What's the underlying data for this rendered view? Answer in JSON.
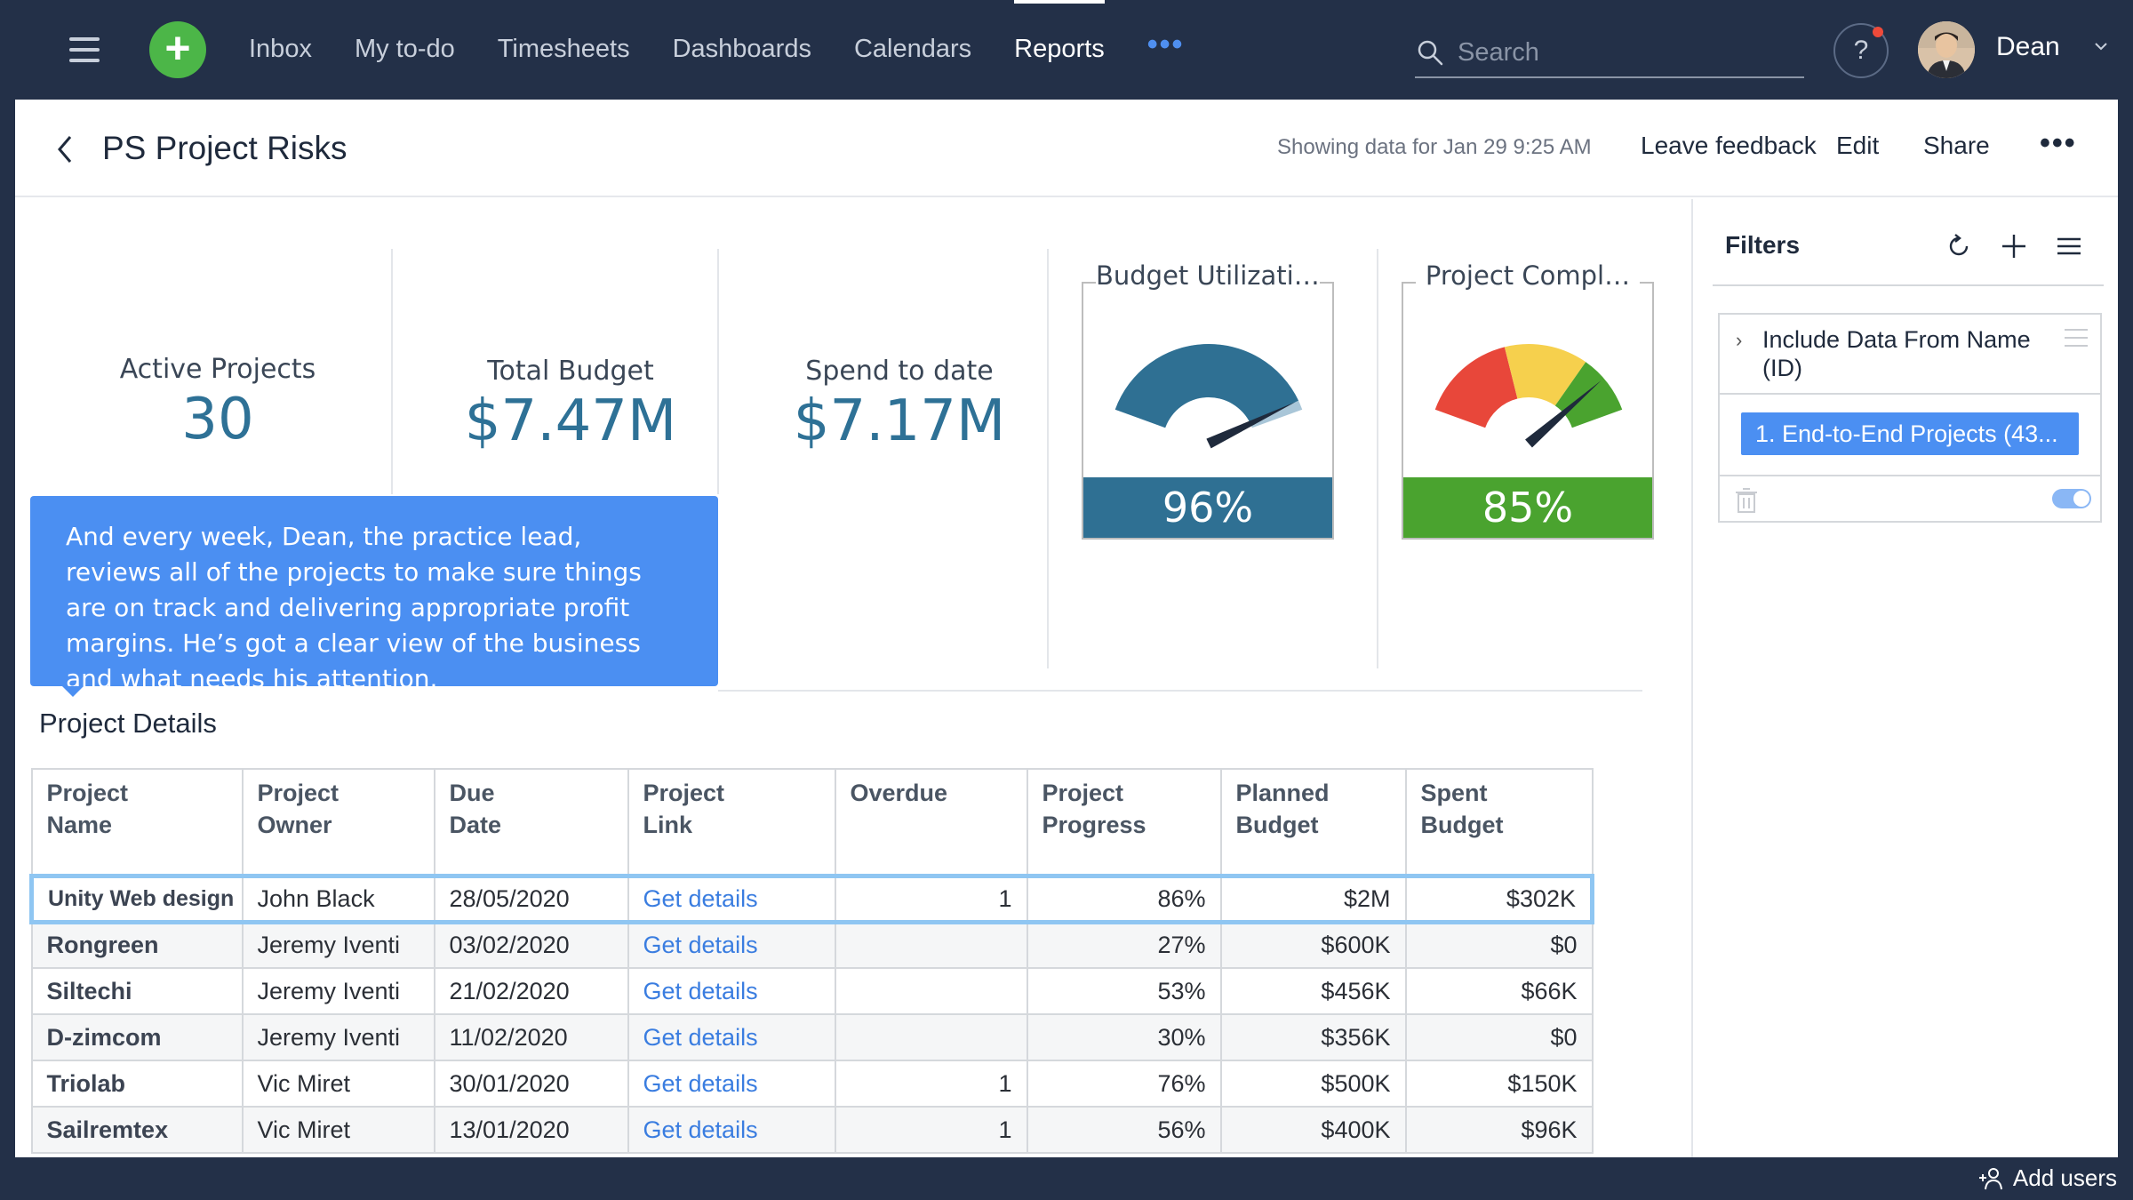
{
  "nav": {
    "items": [
      "Inbox",
      "My to-do",
      "Timesheets",
      "Dashboards",
      "Calendars",
      "Reports"
    ],
    "active": "Reports",
    "more_label": "•••",
    "search_placeholder": "Search",
    "help_label": "?",
    "user_name": "Dean"
  },
  "header": {
    "title": "PS Project Risks",
    "showing": "Showing data for Jan 29 9:25 AM",
    "leave_feedback": "Leave feedback",
    "edit": "Edit",
    "share": "Share",
    "more": "•••"
  },
  "kpis": [
    {
      "label": "Active Projects",
      "value": "30"
    },
    {
      "label": "Total Budget",
      "value": "$7.47M"
    },
    {
      "label": "Spend to date",
      "value": "$7.17M"
    }
  ],
  "gauges": [
    {
      "title": "Budget Utilization",
      "value_label": "96%",
      "value": 0.96,
      "color": "#2f7093"
    },
    {
      "title": "Project Compl…",
      "value_label": "85%",
      "value": 0.85,
      "color": "#4aa32f"
    }
  ],
  "callout": {
    "text": "And every week, Dean, the practice lead, reviews all of the projects to make sure things are on track and delivering appropriate profit margins. He’s got a clear view of the business and what needs his attention."
  },
  "section_title": "Project Details",
  "table": {
    "columns": [
      "Project\nName",
      "Project\nOwner",
      "Due\nDate",
      "Project\nLink",
      "Overdue",
      "Project\nProgress",
      "Planned\nBudget",
      "Spent\nBudget"
    ],
    "rows": [
      {
        "name": "Unity Web design",
        "owner": "John Black",
        "due": "28/05/2020",
        "link": "Get details",
        "overdue": "1",
        "progress": "86%",
        "planned": "$2M",
        "spent": "$302K"
      },
      {
        "name": "Rongreen",
        "owner": "Jeremy Iventi",
        "due": "03/02/2020",
        "link": "Get details",
        "overdue": "",
        "progress": "27%",
        "planned": "$600K",
        "spent": "$0"
      },
      {
        "name": "Siltechi",
        "owner": "Jeremy Iventi",
        "due": "21/02/2020",
        "link": "Get details",
        "overdue": "",
        "progress": "53%",
        "planned": "$456K",
        "spent": "$66K"
      },
      {
        "name": "D-zimcom",
        "owner": "Jeremy Iventi",
        "due": "11/02/2020",
        "link": "Get details",
        "overdue": "",
        "progress": "30%",
        "planned": "$356K",
        "spent": "$0"
      },
      {
        "name": "Triolab",
        "owner": "Vic Miret",
        "due": "30/01/2020",
        "link": "Get details",
        "overdue": "1",
        "progress": "76%",
        "planned": "$500K",
        "spent": "$150K"
      },
      {
        "name": "Sailremtex",
        "owner": "Vic Miret",
        "due": "13/01/2020",
        "link": "Get details",
        "overdue": "1",
        "progress": "56%",
        "planned": "$400K",
        "spent": "$96K"
      }
    ]
  },
  "filters": {
    "title": "Filters",
    "item_label": "Include Data From Name (ID)",
    "item_value": "1. End-to-End Projects (43..."
  },
  "footer": {
    "add_users": "Add users"
  }
}
